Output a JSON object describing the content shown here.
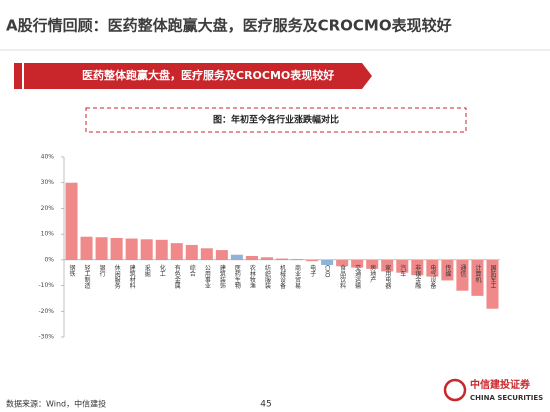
{
  "header": {
    "title": "A股行情回顾：医药整体跑赢大盘，医疗服务及CROCMO表现较好",
    "banner": "医药整体跑赢大盘，医疗服务及CROCMO表现较好"
  },
  "chart_data": {
    "type": "bar",
    "title": "图：年初至今各行业涨跌幅对比",
    "categories": [
      "钢铁",
      "轻工制造",
      "银行",
      "休闲服务",
      "建筑材料",
      "采掘",
      "化工",
      "有色金属",
      "综合",
      "公用事业",
      "建筑装饰",
      "医药生物",
      "农林牧渔",
      "纺织服装",
      "机械设备",
      "商业贸易",
      "电子",
      "CXO",
      "食品饮料",
      "交通运输",
      "房地产",
      "家用电器",
      "汽车",
      "非银金融",
      "电气设备",
      "传媒",
      "通信",
      "计算机",
      "国防军工"
    ],
    "values": [
      30,
      9,
      8.8,
      8.5,
      8.3,
      8,
      7.8,
      6.5,
      5.8,
      4.5,
      3.8,
      2,
      1.5,
      1,
      0.5,
      0.3,
      -0.5,
      -2,
      -2.5,
      -3,
      -3.5,
      -4.5,
      -5,
      -6,
      -6.5,
      -8,
      -12,
      -14,
      -19
    ],
    "colors": [
      "#f08a8a",
      "#f08a8a",
      "#f08a8a",
      "#f08a8a",
      "#f08a8a",
      "#f08a8a",
      "#f08a8a",
      "#f08a8a",
      "#f08a8a",
      "#f08a8a",
      "#f08a8a",
      "#8fb4d8",
      "#f08a8a",
      "#f08a8a",
      "#f08a8a",
      "#f08a8a",
      "#f08a8a",
      "#8fb4d8",
      "#f08a8a",
      "#f08a8a",
      "#f08a8a",
      "#f08a8a",
      "#f08a8a",
      "#f08a8a",
      "#f08a8a",
      "#f08a8a",
      "#f08a8a",
      "#f08a8a",
      "#f08a8a"
    ],
    "ylim": [
      -30,
      40
    ],
    "yticks": [
      {
        "value": -30,
        "label": "-30%"
      },
      {
        "value": -20,
        "label": "-20%"
      },
      {
        "value": -10,
        "label": "-10%"
      },
      {
        "value": 0,
        "label": "0%"
      },
      {
        "value": 10,
        "label": "10%"
      },
      {
        "value": 20,
        "label": "20%"
      },
      {
        "value": 30,
        "label": "30%"
      },
      {
        "value": 40,
        "label": "40%"
      }
    ],
    "grid": false
  },
  "footer": {
    "source": "数据来源：Wind，中信建投",
    "page": "45",
    "logo_cn": "中信建投证券",
    "logo_en": "CHINA SECURITIES"
  }
}
